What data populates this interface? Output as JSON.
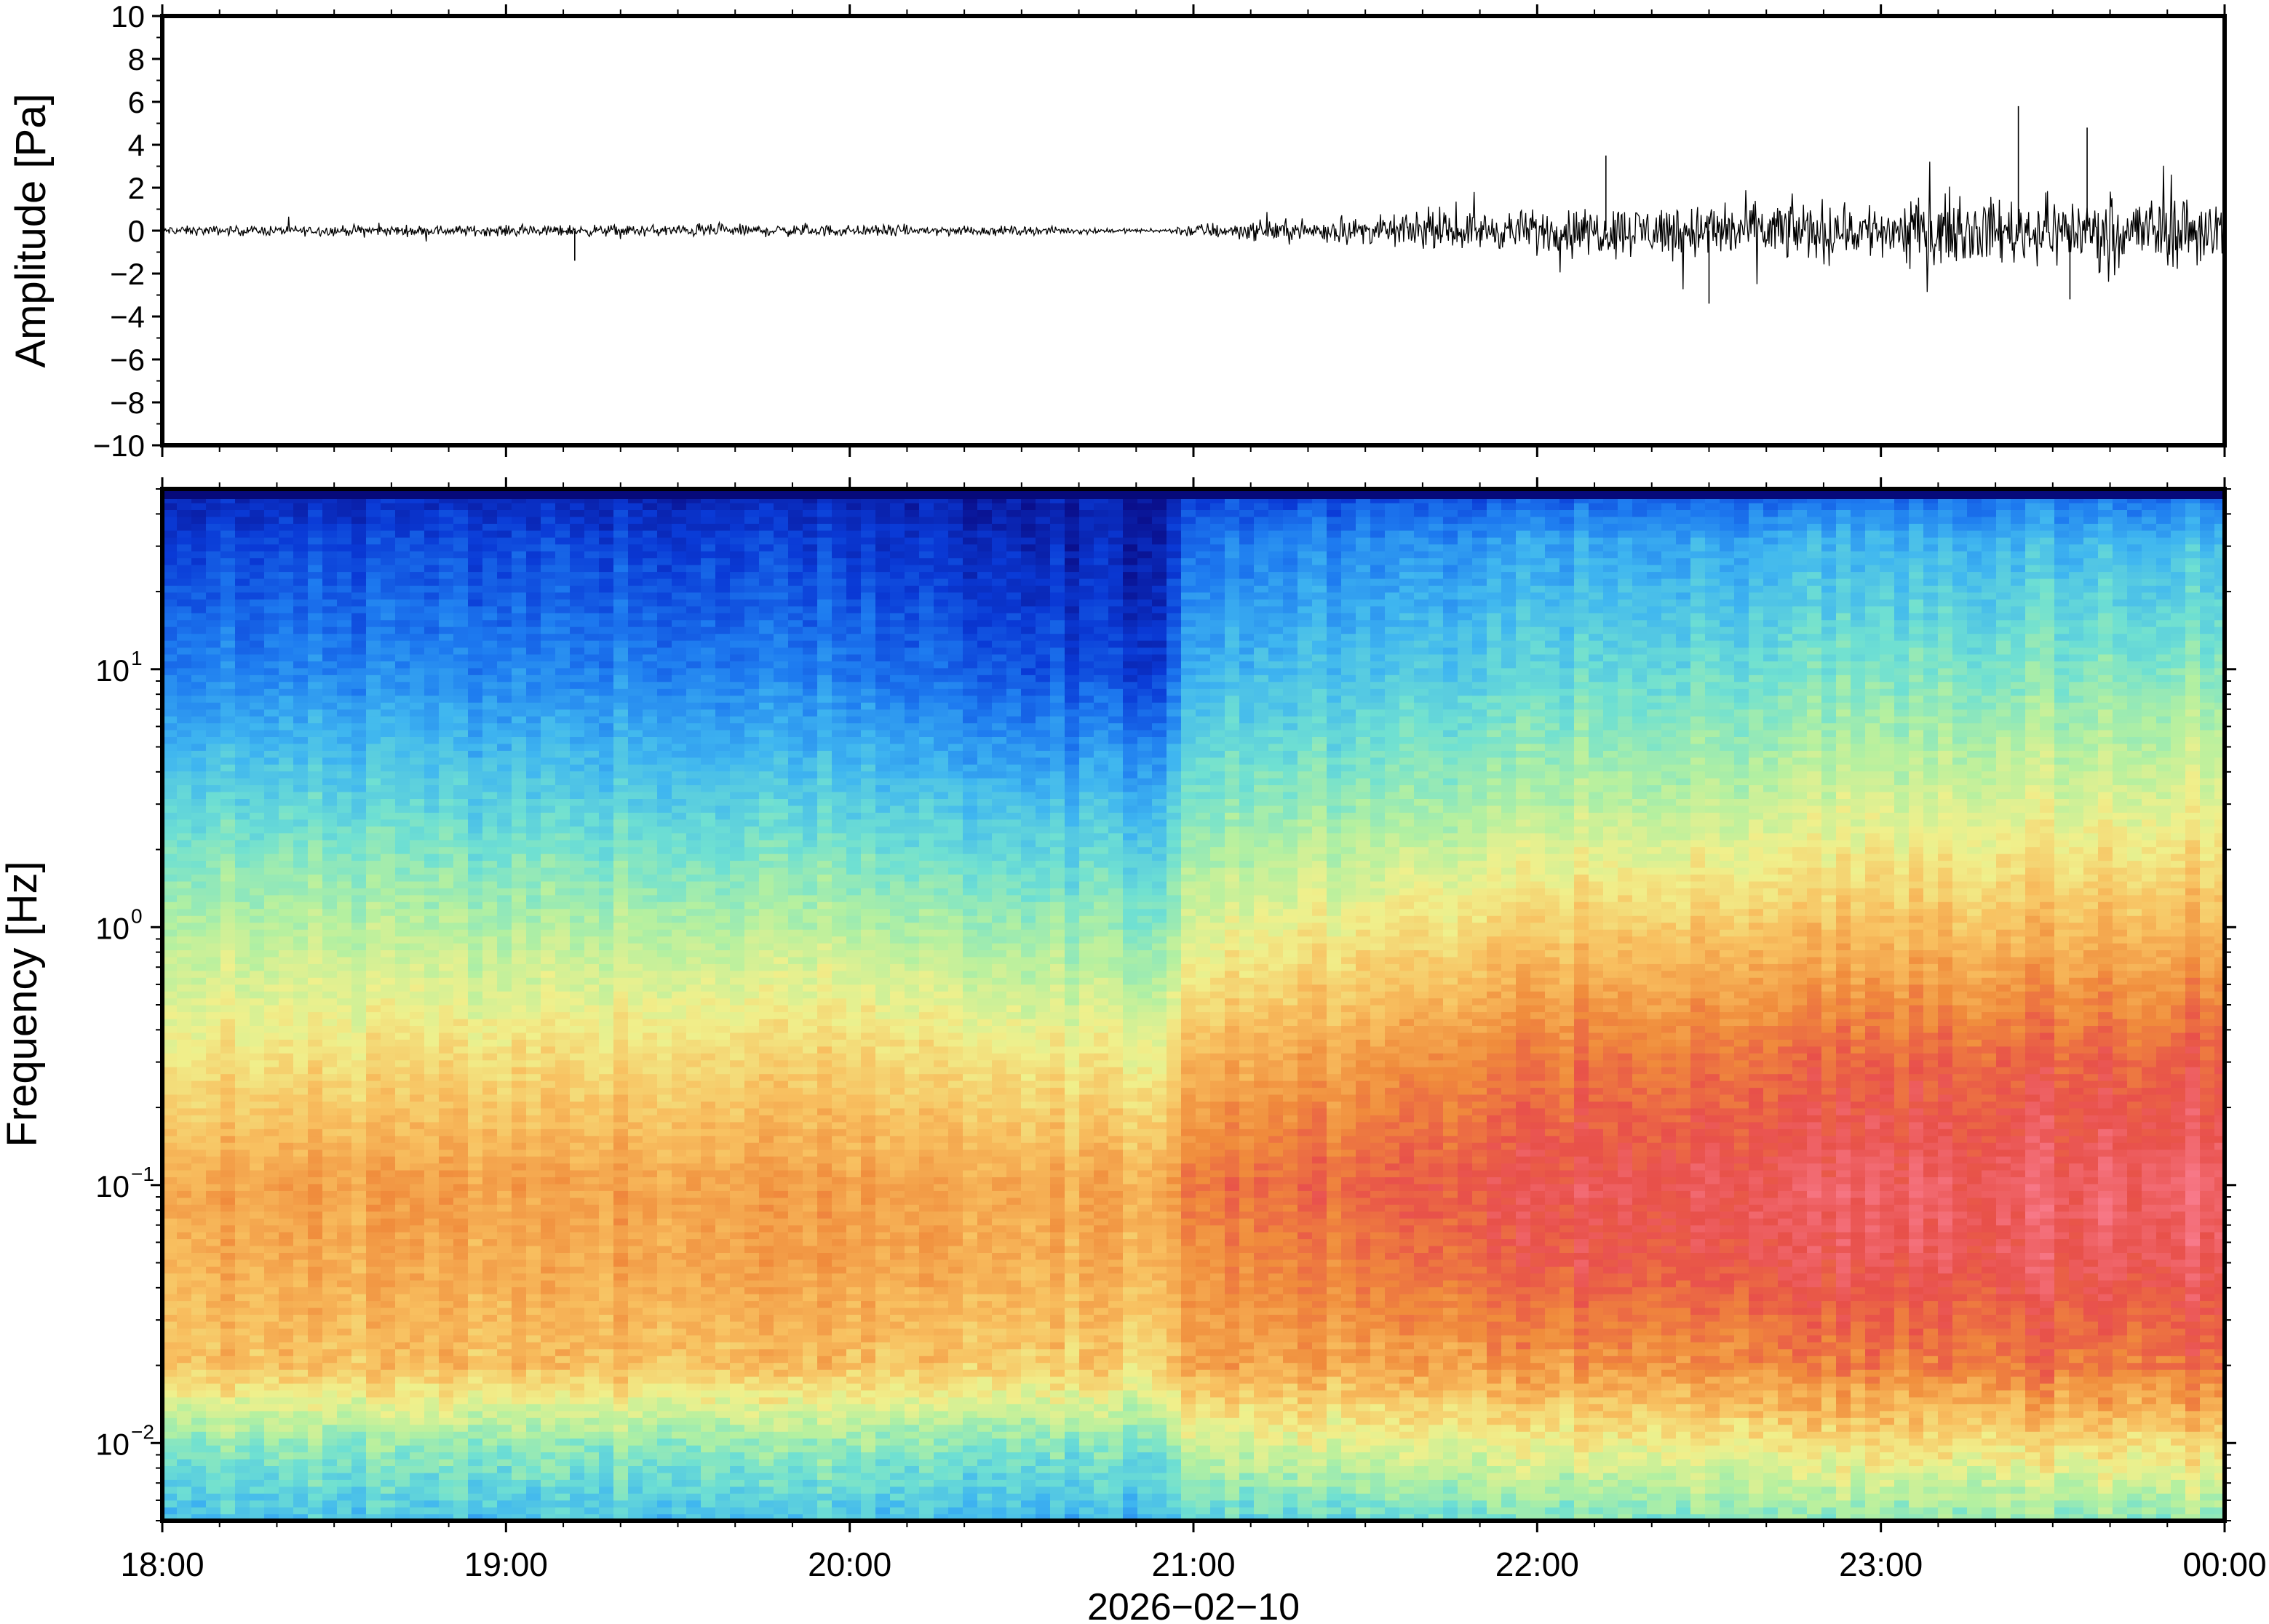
{
  "chart_data": [
    {
      "type": "line",
      "title": "",
      "xlabel": "",
      "ylabel": "Amplitude [Pa]",
      "ylim": [
        -10,
        10
      ],
      "yticks": [
        10,
        8,
        6,
        4,
        2,
        0,
        -2,
        -4,
        -6,
        -8,
        -10
      ],
      "ytick_labels": [
        "10",
        "8",
        "6",
        "4",
        "2",
        "0",
        "−2",
        "−4",
        "−6",
        "−8",
        "−10"
      ],
      "xlim_hours": [
        18,
        24
      ],
      "grid": false,
      "line_color": "#000000",
      "envelope": {
        "x_hours": [
          18.0,
          18.5,
          19.0,
          19.5,
          20.0,
          20.5,
          20.9,
          21.0,
          21.5,
          22.0,
          22.5,
          23.0,
          23.5,
          24.0
        ],
        "amplitude": [
          0.3,
          0.35,
          0.35,
          0.4,
          0.4,
          0.3,
          0.1,
          0.5,
          0.9,
          1.4,
          2.0,
          2.0,
          2.3,
          2.6
        ]
      },
      "peaks": [
        {
          "x_hours": 23.4,
          "value": 5.8
        },
        {
          "x_hours": 23.6,
          "value": 4.8
        },
        {
          "x_hours": 22.5,
          "value": -3.4
        },
        {
          "x_hours": 22.2,
          "value": 3.5
        },
        {
          "x_hours": 23.55,
          "value": -3.2
        },
        {
          "x_hours": 19.2,
          "value": -1.4
        }
      ]
    },
    {
      "type": "heatmap",
      "title": "",
      "xlabel": "2026−02−10",
      "ylabel": "Frequency [Hz]",
      "y_scale": "log",
      "ylim": [
        0.005,
        50
      ],
      "yticks": [
        {
          "base": "10",
          "exp": "1",
          "value": 10
        },
        {
          "base": "10",
          "exp": "0",
          "value": 1
        },
        {
          "base": "10",
          "exp": "−1",
          "value": 0.1
        },
        {
          "base": "10",
          "exp": "−2",
          "value": 0.01
        }
      ],
      "xticks": [
        {
          "label": "18:00",
          "hour": 18
        },
        {
          "label": "19:00",
          "hour": 19
        },
        {
          "label": "20:00",
          "hour": 20
        },
        {
          "label": "21:00",
          "hour": 21
        },
        {
          "label": "22:00",
          "hour": 22
        },
        {
          "label": "23:00",
          "hour": 23
        },
        {
          "label": "00:00",
          "hour": 24
        }
      ],
      "colormap": [
        "#0a0f8c",
        "#0a3ad6",
        "#1e7cf0",
        "#3fb6f0",
        "#6fe0d2",
        "#b4f0a0",
        "#f0f08c",
        "#f8c060",
        "#f08c3c",
        "#e8504a",
        "#f87a8a"
      ],
      "level_profile_log10f": [
        -2.3,
        -2.0,
        -1.7,
        -1.3,
        -1.0,
        -0.5,
        0.0,
        0.5,
        1.0,
        1.5,
        1.7
      ],
      "levels_by_hour": [
        {
          "hour": 18.0,
          "levels": [
            3.3,
            4.5,
            7.0,
            7.4,
            7.6,
            6.3,
            5.2,
            3.8,
            2.2,
            1.2,
            0.6
          ]
        },
        {
          "hour": 19.0,
          "levels": [
            3.3,
            4.5,
            7.0,
            7.4,
            7.6,
            6.4,
            5.0,
            3.6,
            2.2,
            1.2,
            0.5
          ]
        },
        {
          "hour": 20.0,
          "levels": [
            3.2,
            4.6,
            7.0,
            7.6,
            7.6,
            6.6,
            5.1,
            3.5,
            2.0,
            1.0,
            0.4
          ]
        },
        {
          "hour": 20.9,
          "levels": [
            3.0,
            4.2,
            6.6,
            7.2,
            7.4,
            6.0,
            4.4,
            3.0,
            1.0,
            0.4,
            0.2
          ]
        },
        {
          "hour": 21.0,
          "levels": [
            3.6,
            5.5,
            7.4,
            7.8,
            8.3,
            7.1,
            5.6,
            4.2,
            2.9,
            1.8,
            0.9
          ]
        },
        {
          "hour": 22.0,
          "levels": [
            4.3,
            6.0,
            7.8,
            8.9,
            9.2,
            8.3,
            6.8,
            5.0,
            3.8,
            2.7,
            1.4
          ]
        },
        {
          "hour": 23.0,
          "levels": [
            4.5,
            6.4,
            8.2,
            9.2,
            9.4,
            8.6,
            7.0,
            5.5,
            4.2,
            3.0,
            1.6
          ]
        },
        {
          "hour": 24.0,
          "levels": [
            4.6,
            6.6,
            8.5,
            9.4,
            9.6,
            8.8,
            7.3,
            5.8,
            4.5,
            3.2,
            1.8
          ]
        }
      ],
      "grid": false
    }
  ]
}
